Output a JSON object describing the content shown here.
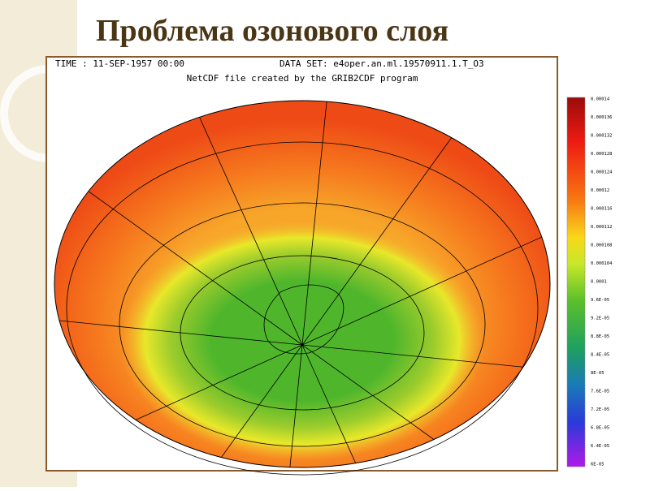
{
  "header": {
    "title": "Проблема озонового слоя"
  },
  "map": {
    "time": "TIME : 11-SEP-1957 00:00",
    "dataset": "DATA SET: e4oper.an.ml.19570911.1.T_O3",
    "subtitle": "NetCDF file created by the GRIB2CDF program",
    "colorbar_labels": [
      "0.00014",
      "0.000136",
      "0.000132",
      "0.000128",
      "0.000124",
      "0.00012",
      "0.000116",
      "0.000112",
      "0.000108",
      "0.000104",
      "0.0001",
      "9.6E-05",
      "9.2E-05",
      "8.8E-05",
      "8.4E-05",
      "8E-05",
      "7.6E-05",
      "7.2E-05",
      "6.8E-05",
      "6.4E-05",
      "6E-05"
    ]
  }
}
